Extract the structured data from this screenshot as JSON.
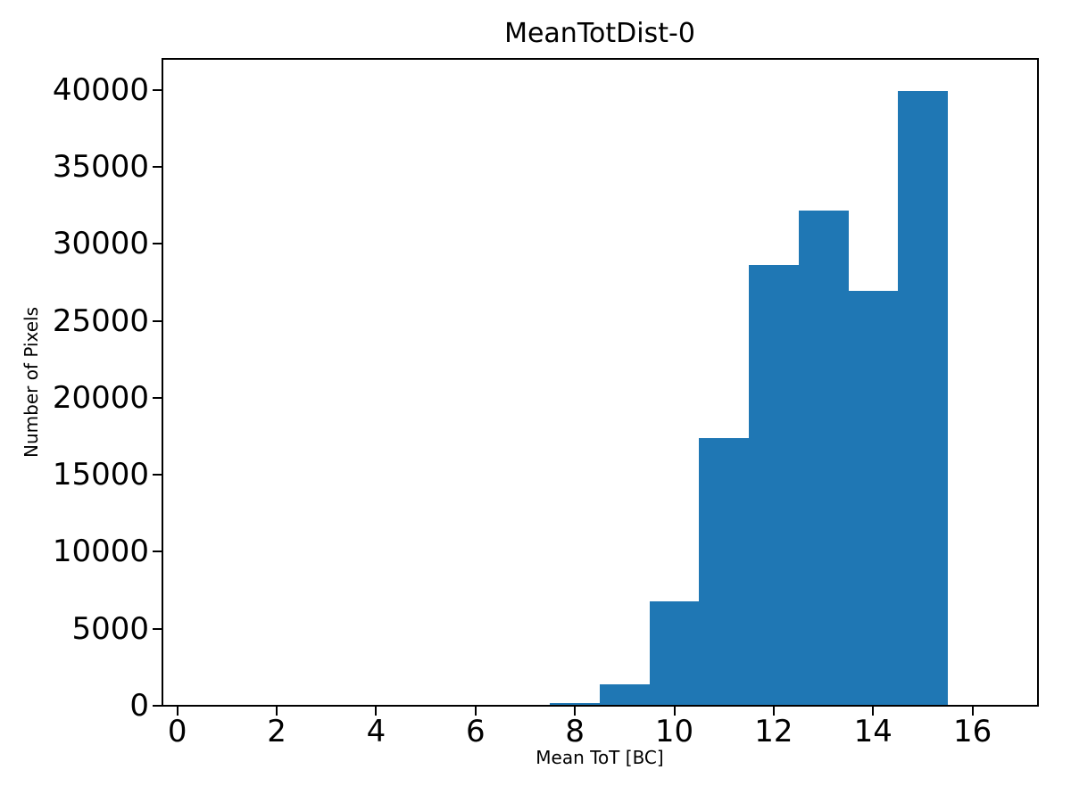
{
  "chart_data": {
    "type": "bar",
    "subtype": "histogram",
    "title": "MeanTotDist-0",
    "xlabel": "Mean ToT [BC]",
    "ylabel": "Number of Pixels",
    "bar_color": "#1f77b4",
    "axis_color": "#000000",
    "background_color": "#ffffff",
    "bin_edges": [
      0.5,
      1.5,
      2.5,
      3.5,
      4.5,
      5.5,
      6.5,
      7.5,
      8.5,
      9.5,
      10.5,
      11.5,
      12.5,
      13.5,
      14.5,
      15.5,
      16.5
    ],
    "counts": [
      0,
      0,
      0,
      0,
      0,
      0,
      0,
      150,
      1400,
      6800,
      17400,
      28600,
      32150,
      26950,
      39940,
      0
    ],
    "xlim": [
      -0.3,
      17.3
    ],
    "ylim": [
      0,
      42000
    ],
    "xticks": [
      0,
      2,
      4,
      6,
      8,
      10,
      12,
      14,
      16
    ],
    "yticks": [
      0,
      5000,
      10000,
      15000,
      20000,
      25000,
      30000,
      35000,
      40000
    ],
    "grid": false,
    "legend": null
  }
}
